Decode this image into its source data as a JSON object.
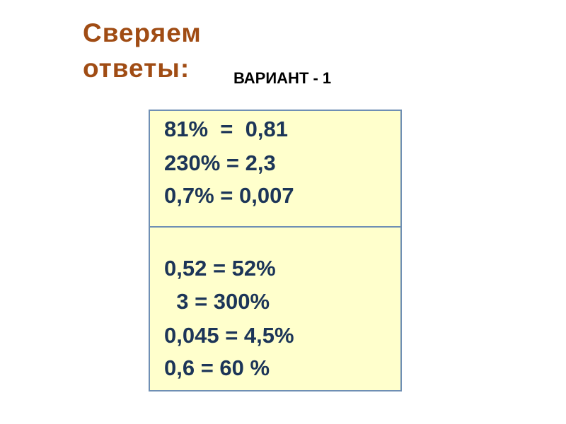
{
  "title": {
    "line1": "Сверяем",
    "line2": "ответы:"
  },
  "variant": "ВАРИАНТ - 1",
  "answers_top": [
    "81%  =  0,81",
    "230% = 2,3",
    "0,7% = 0,007"
  ],
  "answers_bottom": [
    "0,52 = 52%",
    "  3 = 300%",
    "0,045 = 4,5%",
    "0,6 = 60 %"
  ],
  "colors": {
    "title": "#a04c14",
    "text": "#1c3558",
    "box_fill": "#ffffcc",
    "box_border": "#6f8fb4"
  }
}
